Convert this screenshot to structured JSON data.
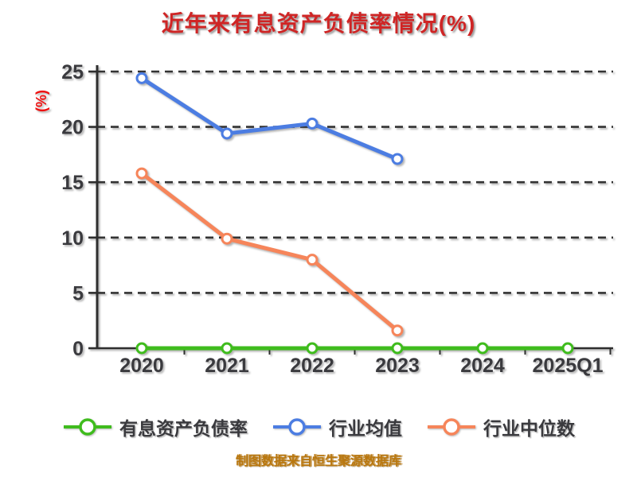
{
  "page": {
    "background": "#ffffff"
  },
  "chart_data": {
    "type": "line",
    "title": "近年来有息资产负债率情况(%)",
    "ylabel": "(%)",
    "footer": "制图数据来自恒生聚源数据库",
    "categories": [
      "2020",
      "2021",
      "2022",
      "2023",
      "2024",
      "2025Q1"
    ],
    "y_ticks": [
      0,
      5,
      10,
      15,
      20,
      25
    ],
    "ylim": [
      0,
      25
    ],
    "grid": "horizontal-dashed",
    "legend_position": "bottom",
    "series": [
      {
        "name": "有息资产负债率",
        "color": "#3fbc1d",
        "values": [
          0,
          0,
          0,
          0,
          0,
          0
        ]
      },
      {
        "name": "行业均值",
        "color": "#4c7de2",
        "values": [
          24.4,
          19.4,
          20.3,
          17.1,
          null,
          null
        ]
      },
      {
        "name": "行业中位数",
        "color": "#f6855a",
        "values": [
          15.8,
          9.9,
          8.0,
          1.6,
          null,
          null
        ]
      }
    ],
    "colors": {
      "title": "#cf2525",
      "ylabel": "#ee1111",
      "tick_text": "#3a3a3e",
      "grid": "#333333",
      "axis": "#2e2e2e",
      "footer": "#b9770e",
      "marker_fill": "#ffffff"
    }
  }
}
